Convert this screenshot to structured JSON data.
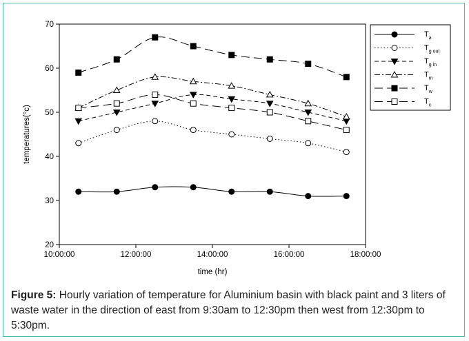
{
  "chart_data": {
    "type": "line",
    "xlabel": "time (hr)",
    "ylabel": "temperatures(°c)",
    "xlim": [
      "10:00:00",
      "18:00:00"
    ],
    "ylim": [
      20,
      70
    ],
    "x_ticks": [
      "10:00:00",
      "12:00:00",
      "14:00:00",
      "16:00:00",
      "18:00:00"
    ],
    "y_ticks": [
      20,
      30,
      40,
      50,
      60,
      70
    ],
    "x": [
      "10:30:00",
      "11:30:00",
      "12:30:00",
      "13:30:00",
      "14:30:00",
      "15:30:00",
      "16:30:00",
      "17:30:00"
    ],
    "grid": false,
    "legend_position": "top-right",
    "series": [
      {
        "name": "T",
        "sub": "a",
        "marker": "filled-circle",
        "line": "solid",
        "values": [
          32,
          32,
          33,
          33,
          32,
          32,
          31,
          31
        ]
      },
      {
        "name": "T",
        "sub": "g out",
        "marker": "open-circle",
        "line": "dotted",
        "values": [
          43,
          46,
          48,
          46,
          45,
          44,
          43,
          41
        ]
      },
      {
        "name": "T",
        "sub": "g in",
        "marker": "filled-triangle-down",
        "line": "dashed",
        "values": [
          48,
          50,
          52,
          54,
          53,
          52,
          50,
          48
        ]
      },
      {
        "name": "T",
        "sub": "m",
        "marker": "open-triangle-up",
        "line": "dash-dot",
        "values": [
          51,
          55,
          58,
          57,
          56,
          54,
          52,
          49
        ]
      },
      {
        "name": "T",
        "sub": "w",
        "marker": "filled-square",
        "line": "long-dash",
        "values": [
          59,
          62,
          67,
          65,
          63,
          62,
          61,
          58
        ]
      },
      {
        "name": "T",
        "sub": "c",
        "marker": "open-square",
        "line": "long-dash",
        "values": [
          51,
          52,
          54,
          52,
          51,
          50,
          48,
          46
        ]
      }
    ]
  },
  "caption": {
    "label": "Figure 5:",
    "text": " Hourly variation of temperature for Aluminium basin with black paint and 3 liters of waste water in the direction of east from 9:30am to 12:30pm then west from 12:30pm to 5:30pm."
  }
}
